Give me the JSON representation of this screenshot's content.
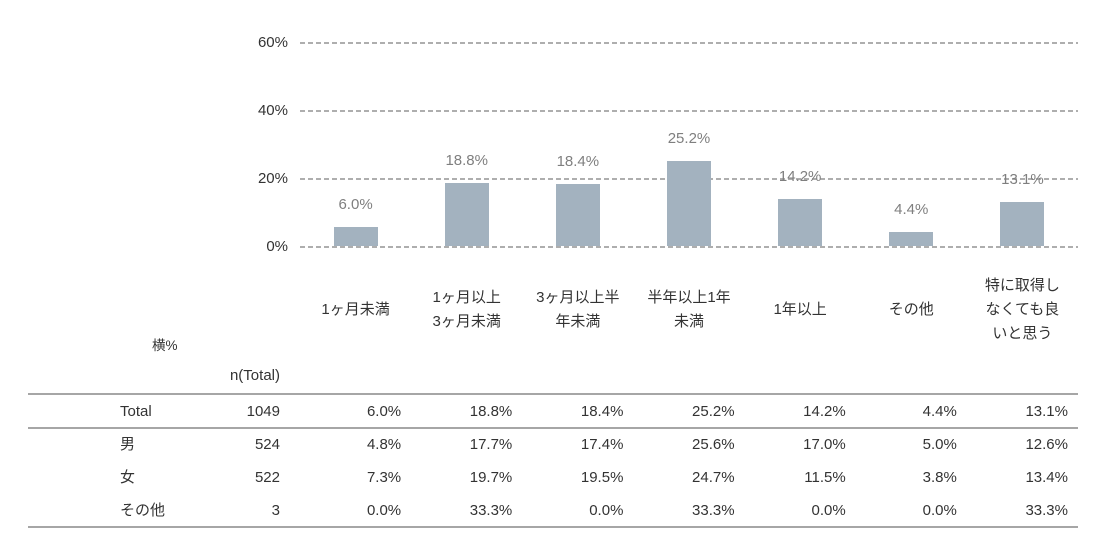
{
  "chart_data": {
    "type": "bar",
    "title": "",
    "categories": [
      "1ヶ月未満",
      "1ヶ月以上\n3ヶ月未満",
      "3ヶ月以上半\n年未満",
      "半年以上1年\n未満",
      "1年以上",
      "その他",
      "特に取得し\nなくても良\nいと思う"
    ],
    "values": [
      6.0,
      18.8,
      18.4,
      25.2,
      14.2,
      4.4,
      13.1
    ],
    "value_labels": [
      "6.0%",
      "18.8%",
      "18.4%",
      "25.2%",
      "14.2%",
      "4.4%",
      "13.1%"
    ],
    "yticks": [
      0,
      20,
      40,
      60
    ],
    "ytick_labels": [
      "0%",
      "20%",
      "40%",
      "60%"
    ],
    "ylim": [
      0,
      70
    ],
    "xlabel": "",
    "ylabel": "",
    "legend": "none",
    "grid": "horizontal-dashed",
    "bar_color": "#a3b2bf"
  },
  "table": {
    "corner_label": "横%",
    "n_header": "n(Total)",
    "column_headers": [
      "",
      "n(Total)",
      "1ヶ月未満",
      "1ヶ月以上3ヶ月未満",
      "3ヶ月以上半年未満",
      "半年以上1年未満",
      "1年以上",
      "その他",
      "特に取得しなくても良いと思う"
    ],
    "rows": [
      {
        "label": "Total",
        "n": "1049",
        "values": [
          "6.0%",
          "18.8%",
          "18.4%",
          "25.2%",
          "14.2%",
          "4.4%",
          "13.1%"
        ]
      },
      {
        "label": "男",
        "n": "524",
        "values": [
          "4.8%",
          "17.7%",
          "17.4%",
          "25.6%",
          "17.0%",
          "5.0%",
          "12.6%"
        ]
      },
      {
        "label": "女",
        "n": "522",
        "values": [
          "7.3%",
          "19.7%",
          "19.5%",
          "24.7%",
          "11.5%",
          "3.8%",
          "13.4%"
        ]
      },
      {
        "label": "その他",
        "n": "3",
        "values": [
          "0.0%",
          "33.3%",
          "0.0%",
          "33.3%",
          "0.0%",
          "0.0%",
          "33.3%"
        ]
      }
    ]
  },
  "colors": {
    "bar": "#a3b2bf",
    "gridline": "#aeaeae",
    "value_label": "#7f7f7f",
    "axis_text": "#333333",
    "table_rule": "#a6a6a6",
    "background": "#ffffff"
  }
}
